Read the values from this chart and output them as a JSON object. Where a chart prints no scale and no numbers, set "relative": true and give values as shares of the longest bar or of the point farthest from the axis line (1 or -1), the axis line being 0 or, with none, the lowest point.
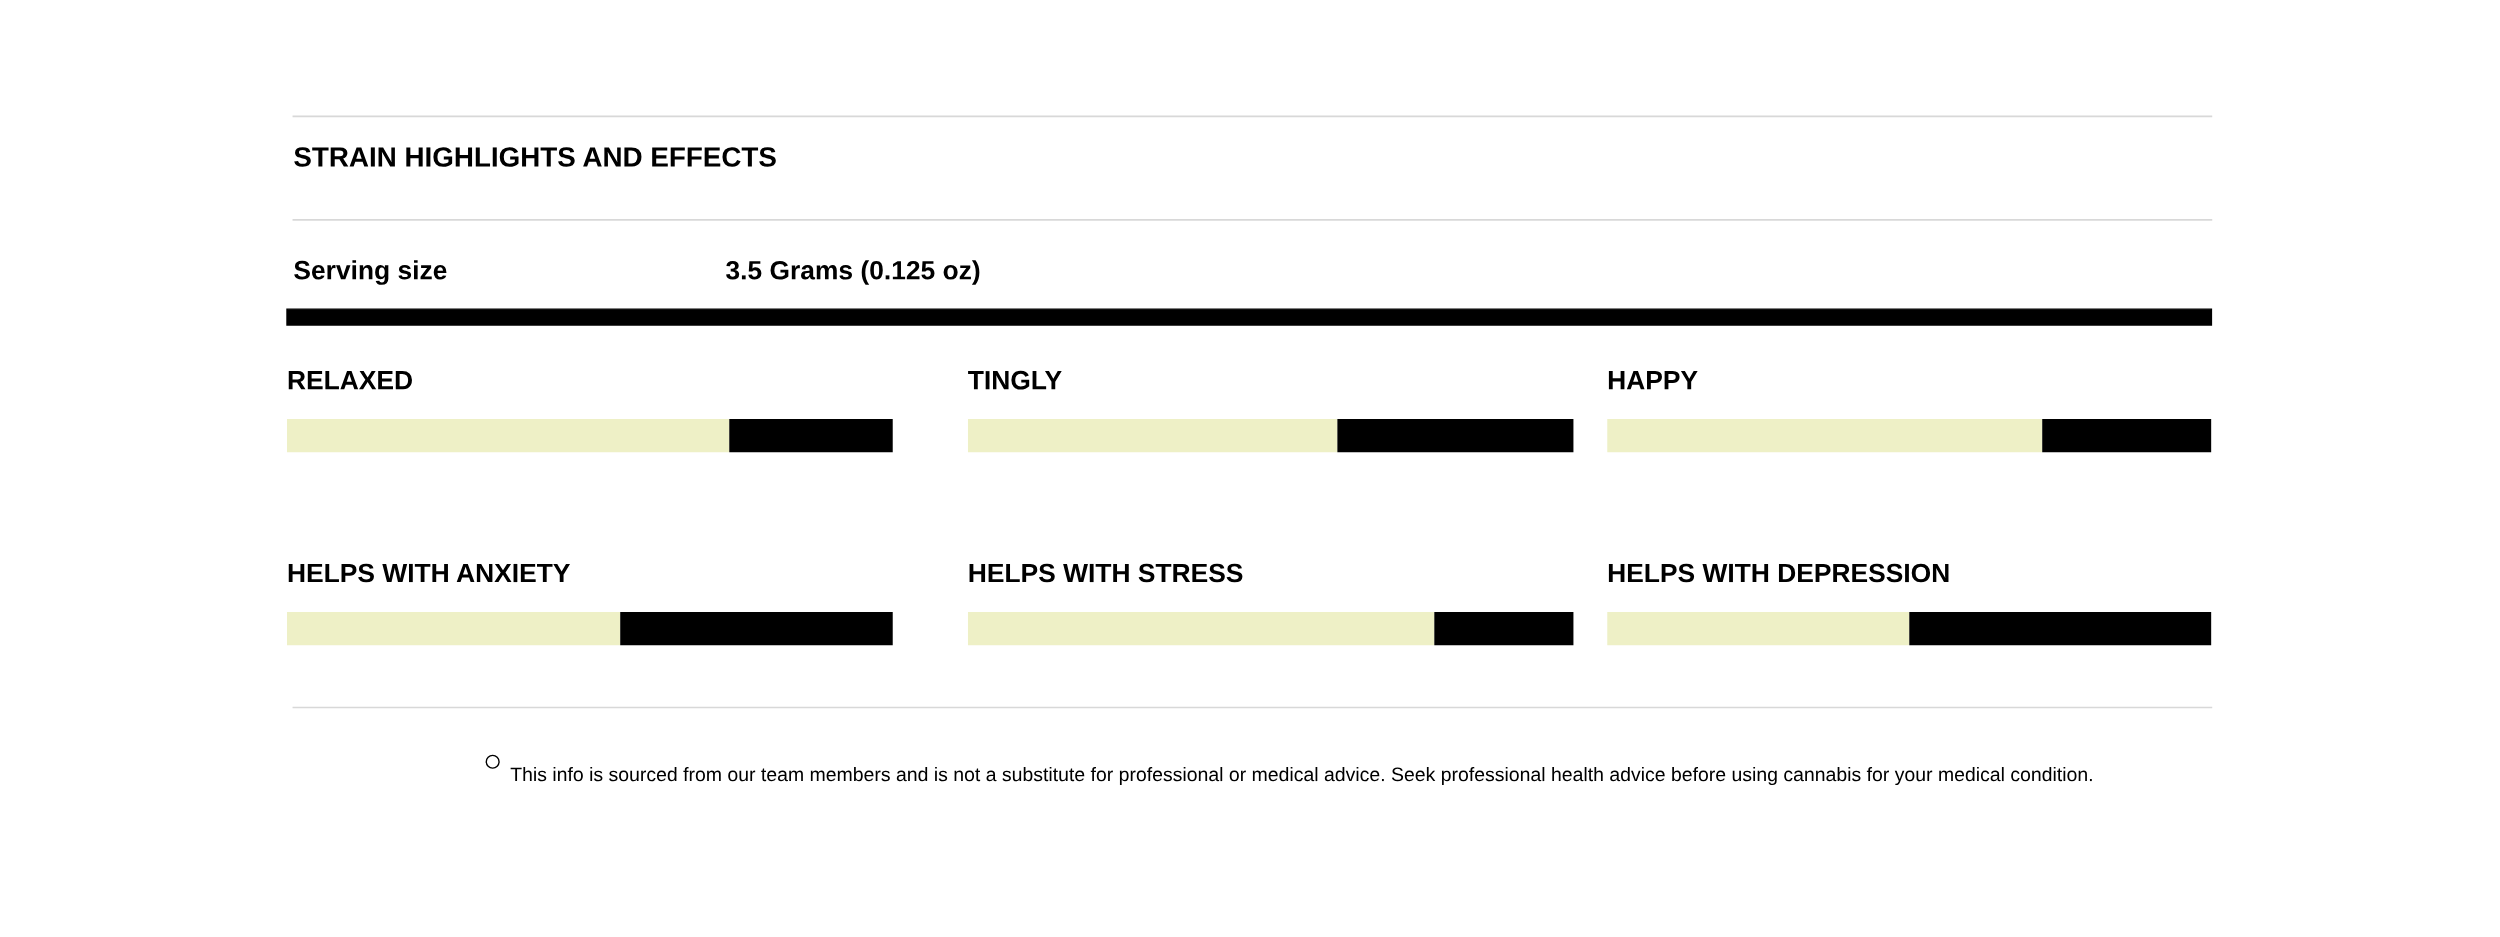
{
  "chart_data": [
    {
      "type": "other",
      "title": "STRAIN HIGHLIGHTS AND EFFECTS",
      "annotations": [
        "Serving size",
        "3.5 Grams (0.125 oz)",
        "This info is sourced from our team members and is not a substitute for professional or medical advice. Seek professional health advice before using cannabis for your medical condition."
      ]
    },
    {
      "type": "bar",
      "title": "RELAXED",
      "orientation": "horizontal",
      "stacked": true,
      "relative": true,
      "categories": [
        null
      ],
      "series": [
        {
          "color": "#eef0c6",
          "values": [
            0.73
          ]
        },
        {
          "color": "#000000",
          "values": [
            0.27
          ]
        }
      ]
    },
    {
      "type": "bar",
      "title": "TINGLY",
      "orientation": "horizontal",
      "stacked": true,
      "relative": true,
      "categories": [
        null
      ],
      "series": [
        {
          "color": "#eef0c6",
          "values": [
            0.61
          ]
        },
        {
          "color": "#000000",
          "values": [
            0.39
          ]
        }
      ]
    },
    {
      "type": "bar",
      "title": "HAPPY",
      "orientation": "horizontal",
      "stacked": true,
      "relative": true,
      "categories": [
        null
      ],
      "series": [
        {
          "color": "#eef0c6",
          "values": [
            0.72
          ]
        },
        {
          "color": "#000000",
          "values": [
            0.28
          ]
        }
      ]
    },
    {
      "type": "bar",
      "title": "HELPS WITH ANXIETY",
      "orientation": "horizontal",
      "stacked": true,
      "relative": true,
      "categories": [
        null
      ],
      "series": [
        {
          "color": "#eef0c6",
          "values": [
            0.55
          ]
        },
        {
          "color": "#000000",
          "values": [
            0.45
          ]
        }
      ]
    },
    {
      "type": "bar",
      "title": "HELPS WITH STRESS",
      "orientation": "horizontal",
      "stacked": true,
      "relative": true,
      "categories": [
        null
      ],
      "series": [
        {
          "color": "#eef0c6",
          "values": [
            0.77
          ]
        },
        {
          "color": "#000000",
          "values": [
            0.23
          ]
        }
      ]
    },
    {
      "type": "bar",
      "title": "HELPS WITH DEPRESSION",
      "orientation": "horizontal",
      "stacked": true,
      "relative": true,
      "categories": [
        null
      ],
      "series": [
        {
          "color": "#eef0c6",
          "values": [
            0.5
          ]
        },
        {
          "color": "#000000",
          "values": [
            0.5
          ]
        }
      ]
    }
  ]
}
